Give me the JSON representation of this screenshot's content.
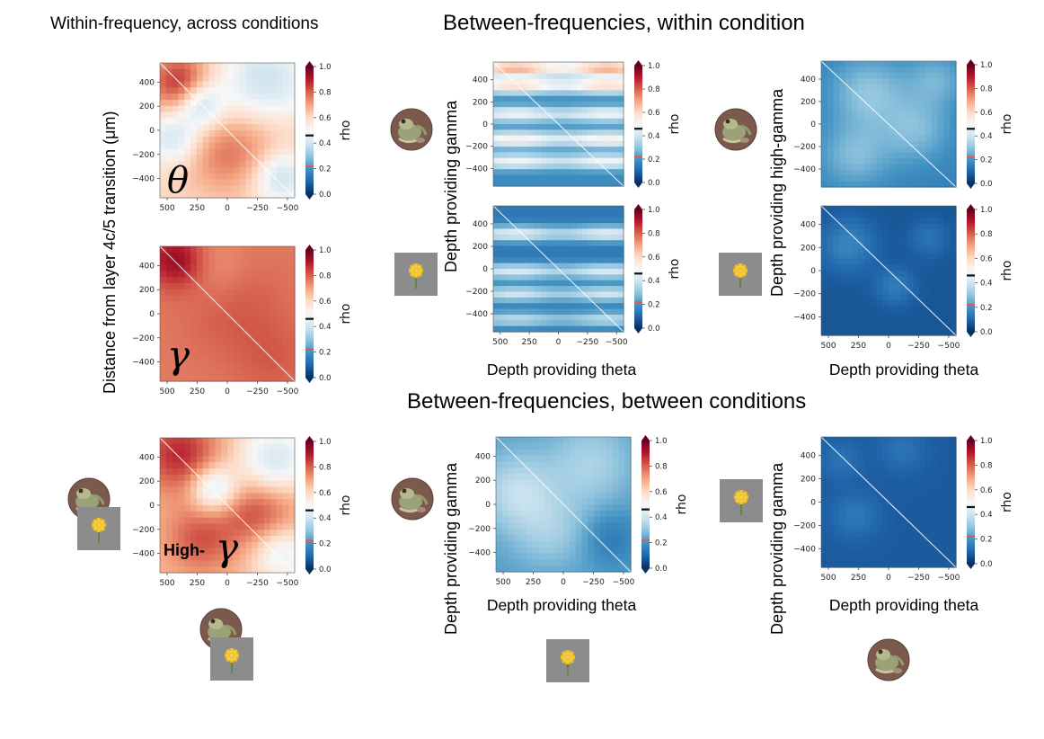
{
  "titles": {
    "left": "Within-frequency, across conditions",
    "top": "Between-frequencies, within condition",
    "bottom": "Between-frequencies, between conditions"
  },
  "labels": {
    "shared_ylabel": "Distance from layer 4c/5 transition (μm)",
    "y_gamma": "Depth providing gamma",
    "y_high_gamma": "Depth providing high-gamma",
    "x_theta": "Depth providing theta",
    "colorbar": "rho",
    "theta_symbol": "θ",
    "gamma_symbol": "γ",
    "high_gamma_prefix": "High-",
    "high_gamma_symbol": "γ"
  },
  "colors": {
    "cmap": [
      "#053061",
      "#2166ac",
      "#4393c3",
      "#92c5de",
      "#d1e5f0",
      "#f7f7f7",
      "#fddbc7",
      "#f4a582",
      "#d6604d",
      "#b2182b",
      "#67001f"
    ],
    "tick_marker": "#d6604d",
    "dark_blue": "#0f3a6e"
  },
  "chart_data": [
    {
      "id": "theta-across",
      "type": "heatmap",
      "xlabel": "",
      "ylabel": "",
      "x_ticks": [
        "500",
        "250",
        "0",
        "−250",
        "−500"
      ],
      "y_ticks": [
        "400",
        "200",
        "0",
        "−200",
        "−400"
      ],
      "xlim": [
        560,
        -560
      ],
      "ylim": [
        -560,
        560
      ],
      "colorbar": {
        "label": "rho",
        "range": [
          0,
          1.0
        ],
        "ticks": [
          "1.0",
          "0.8",
          "0.6",
          "0.4",
          "0.2",
          "0.0"
        ],
        "markers": [
          0.46,
          0.22
        ]
      },
      "thumbnails": []
    },
    {
      "id": "gamma-across",
      "type": "heatmap",
      "xlabel": "",
      "ylabel": "",
      "x_ticks": [
        "500",
        "250",
        "0",
        "−250",
        "−500"
      ],
      "y_ticks": [
        "400",
        "200",
        "0",
        "−200",
        "−400"
      ],
      "xlim": [
        560,
        -560
      ],
      "ylim": [
        -560,
        560
      ],
      "colorbar": {
        "label": "rho",
        "range": [
          0,
          1.0
        ],
        "ticks": [
          "1.0",
          "0.8",
          "0.6",
          "0.4",
          "0.2",
          "0.0"
        ],
        "markers": [
          0.46,
          0.22
        ]
      },
      "thumbnails": []
    },
    {
      "id": "highgamma-across",
      "type": "heatmap",
      "xlabel": "",
      "ylabel": "",
      "x_ticks": [
        "500",
        "250",
        "0",
        "−250",
        "−500"
      ],
      "y_ticks": [
        "400",
        "200",
        "0",
        "−200",
        "−400"
      ],
      "xlim": [
        560,
        -560
      ],
      "ylim": [
        -560,
        560
      ],
      "colorbar": {
        "label": "rho",
        "range": [
          0,
          1.0
        ],
        "ticks": [
          "1.0",
          "0.8",
          "0.6",
          "0.4",
          "0.2",
          "0.0"
        ],
        "markers": [
          0.46,
          0.22
        ]
      },
      "thumbnails": [
        "frog",
        "flower"
      ]
    },
    {
      "id": "theta-gamma-frog",
      "type": "heatmap",
      "xlabel": "",
      "ylabel": "Depth providing gamma",
      "x_ticks": [],
      "y_ticks": [
        "400",
        "200",
        "0",
        "−200",
        "−400"
      ],
      "xlim": [
        560,
        -560
      ],
      "ylim": [
        -560,
        560
      ],
      "colorbar": {
        "label": "rho",
        "range": [
          0,
          1.0
        ],
        "ticks": [
          "1.0",
          "0.8",
          "0.6",
          "0.4",
          "0.2",
          "0.0"
        ],
        "markers": [
          0.46,
          0.22
        ]
      },
      "thumbnails": [
        "frog"
      ]
    },
    {
      "id": "theta-gamma-flower",
      "type": "heatmap",
      "xlabel": "Depth providing theta",
      "ylabel": "Depth providing gamma",
      "x_ticks": [
        "500",
        "250",
        "0",
        "−250",
        "−500"
      ],
      "y_ticks": [
        "400",
        "200",
        "0",
        "−200",
        "−400"
      ],
      "xlim": [
        560,
        -560
      ],
      "ylim": [
        -560,
        560
      ],
      "colorbar": {
        "label": "rho",
        "range": [
          0,
          1.0
        ],
        "ticks": [
          "1.0",
          "0.8",
          "0.6",
          "0.4",
          "0.2",
          "0.0"
        ],
        "markers": [
          0.46,
          0.22
        ]
      },
      "thumbnails": [
        "flower"
      ]
    },
    {
      "id": "theta-highgamma-frog",
      "type": "heatmap",
      "xlabel": "",
      "ylabel": "Depth providing high-gamma",
      "x_ticks": [],
      "y_ticks": [
        "400",
        "200",
        "0",
        "−200",
        "−400"
      ],
      "xlim": [
        560,
        -560
      ],
      "ylim": [
        -560,
        560
      ],
      "colorbar": {
        "label": "rho",
        "range": [
          0,
          1.0
        ],
        "ticks": [
          "1.0",
          "0.8",
          "0.6",
          "0.4",
          "0.2",
          "0.0"
        ],
        "markers": [
          0.46,
          0.22
        ]
      },
      "thumbnails": [
        "frog"
      ]
    },
    {
      "id": "theta-highgamma-flower",
      "type": "heatmap",
      "xlabel": "Depth providing theta",
      "ylabel": "Depth providing high-gamma",
      "x_ticks": [
        "500",
        "250",
        "0",
        "−250",
        "−500"
      ],
      "y_ticks": [
        "400",
        "200",
        "0",
        "−200",
        "−400"
      ],
      "xlim": [
        560,
        -560
      ],
      "ylim": [
        -560,
        560
      ],
      "colorbar": {
        "label": "rho",
        "range": [
          0,
          1.0
        ],
        "ticks": [
          "1.0",
          "0.8",
          "0.6",
          "0.4",
          "0.2",
          "0.0"
        ],
        "markers": [
          0.46,
          0.22
        ]
      },
      "thumbnails": [
        "flower"
      ]
    },
    {
      "id": "between-frog-flower",
      "type": "heatmap",
      "xlabel": "Depth providing theta",
      "ylabel": "Depth providing gamma",
      "x_ticks": [
        "500",
        "250",
        "0",
        "−250",
        "−500"
      ],
      "y_ticks": [
        "400",
        "200",
        "0",
        "−200",
        "−400"
      ],
      "xlim": [
        560,
        -560
      ],
      "ylim": [
        -560,
        560
      ],
      "colorbar": {
        "label": "rho",
        "range": [
          0,
          1.0
        ],
        "ticks": [
          "1.0",
          "0.8",
          "0.6",
          "0.4",
          "0.2",
          "0.0"
        ],
        "markers": [
          0.46,
          0.22
        ]
      },
      "thumbnails": [
        "frog",
        "flower"
      ]
    },
    {
      "id": "between-flower-frog",
      "type": "heatmap",
      "xlabel": "Depth providing theta",
      "ylabel": "Depth providing gamma",
      "x_ticks": [
        "500",
        "250",
        "0",
        "−250",
        "−500"
      ],
      "y_ticks": [
        "400",
        "200",
        "0",
        "−200",
        "−400"
      ],
      "xlim": [
        560,
        -560
      ],
      "ylim": [
        -560,
        560
      ],
      "colorbar": {
        "label": "rho",
        "range": [
          0,
          1.0
        ],
        "ticks": [
          "1.0",
          "0.8",
          "0.6",
          "0.4",
          "0.2",
          "0.0"
        ],
        "markers": [
          0.46,
          0.22
        ]
      },
      "thumbnails": [
        "flower",
        "frog"
      ]
    }
  ]
}
